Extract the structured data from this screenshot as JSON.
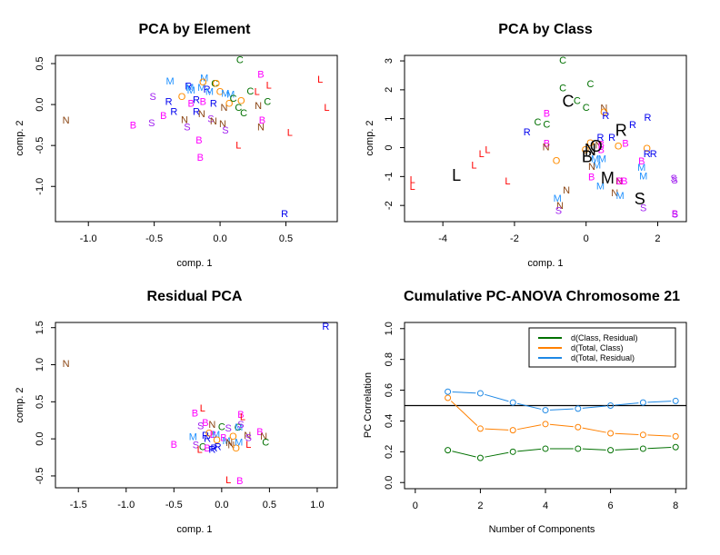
{
  "colors": {
    "B": "#FF00FF",
    "C": "#007000",
    "L": "#FF0000",
    "M": "#1E90FF",
    "N": "#8B4513",
    "O": "#FF8C00",
    "R": "#0000EE",
    "S": "#A020F0",
    "centroid": "#000000",
    "d_class_residual": "#007000",
    "d_total_class": "#FF8000",
    "d_total_residual": "#1E88E5",
    "reference_line": "#000000"
  },
  "chart_data": [
    {
      "id": "pca-by-element",
      "type": "scatter",
      "title": "PCA by Element",
      "xlabel": "comp. 1",
      "ylabel": "comp. 2",
      "xlim": [
        -1.25,
        0.89
      ],
      "ylim": [
        -1.43,
        0.6
      ],
      "xticks": [
        -1.0,
        -0.5,
        0.0,
        0.5
      ],
      "xtick_labels": [
        "-1.0",
        "-0.5",
        "0.0",
        "0.5"
      ],
      "yticks": [
        0.5,
        0.0,
        -0.5,
        -1.0
      ],
      "ytick_labels": [
        "0.5",
        "0.0",
        "-0.5",
        "-1.0"
      ],
      "points": [
        {
          "label": "N",
          "x": -1.17,
          "y": -0.19
        },
        {
          "label": "B",
          "x": -0.66,
          "y": -0.25
        },
        {
          "label": "S",
          "x": -0.52,
          "y": -0.22
        },
        {
          "label": "S",
          "x": -0.51,
          "y": 0.1
        },
        {
          "label": "B",
          "x": -0.43,
          "y": -0.13
        },
        {
          "label": "R",
          "x": -0.39,
          "y": 0.04
        },
        {
          "label": "M",
          "x": -0.38,
          "y": 0.29
        },
        {
          "label": "R",
          "x": -0.35,
          "y": -0.08
        },
        {
          "label": "O",
          "x": -0.29,
          "y": 0.1
        },
        {
          "label": "N",
          "x": -0.27,
          "y": -0.18
        },
        {
          "label": "S",
          "x": -0.25,
          "y": -0.27
        },
        {
          "label": "R",
          "x": -0.24,
          "y": 0.23
        },
        {
          "label": "M",
          "x": -0.23,
          "y": 0.21
        },
        {
          "label": "M",
          "x": -0.22,
          "y": 0.18
        },
        {
          "label": "B",
          "x": -0.22,
          "y": 0.02
        },
        {
          "label": "R",
          "x": -0.18,
          "y": 0.06
        },
        {
          "label": "R",
          "x": -0.18,
          "y": -0.08
        },
        {
          "label": "N",
          "x": -0.14,
          "y": -0.11
        },
        {
          "label": "B",
          "x": -0.16,
          "y": -0.43
        },
        {
          "label": "B",
          "x": -0.15,
          "y": -0.64
        },
        {
          "label": "M",
          "x": -0.14,
          "y": 0.21
        },
        {
          "label": "M",
          "x": -0.12,
          "y": 0.33
        },
        {
          "label": "O",
          "x": -0.13,
          "y": 0.28
        },
        {
          "label": "B",
          "x": -0.13,
          "y": 0.04
        },
        {
          "label": "R",
          "x": -0.1,
          "y": 0.19
        },
        {
          "label": "M",
          "x": -0.08,
          "y": 0.16
        },
        {
          "label": "S",
          "x": -0.07,
          "y": -0.17
        },
        {
          "label": "N",
          "x": -0.05,
          "y": -0.2
        },
        {
          "label": "R",
          "x": -0.05,
          "y": 0.02
        },
        {
          "label": "C",
          "x": -0.04,
          "y": 0.26
        },
        {
          "label": "O",
          "x": -0.03,
          "y": 0.26
        },
        {
          "label": "O",
          "x": 0.0,
          "y": 0.16
        },
        {
          "label": "N",
          "x": 0.02,
          "y": -0.23
        },
        {
          "label": "N",
          "x": 0.03,
          "y": -0.03
        },
        {
          "label": "M",
          "x": 0.04,
          "y": 0.14
        },
        {
          "label": "S",
          "x": 0.04,
          "y": -0.31
        },
        {
          "label": "O",
          "x": 0.07,
          "y": 0.02
        },
        {
          "label": "M",
          "x": 0.08,
          "y": 0.13
        },
        {
          "label": "C",
          "x": 0.1,
          "y": 0.08
        },
        {
          "label": "C",
          "x": 0.15,
          "y": 0.55
        },
        {
          "label": "C",
          "x": 0.14,
          "y": -0.03
        },
        {
          "label": "L",
          "x": 0.14,
          "y": -0.49
        },
        {
          "label": "O",
          "x": 0.16,
          "y": 0.05
        },
        {
          "label": "C",
          "x": 0.18,
          "y": -0.1
        },
        {
          "label": "C",
          "x": 0.23,
          "y": 0.17
        },
        {
          "label": "L",
          "x": 0.28,
          "y": 0.16
        },
        {
          "label": "N",
          "x": 0.29,
          "y": -0.01
        },
        {
          "label": "N",
          "x": 0.31,
          "y": -0.27
        },
        {
          "label": "B",
          "x": 0.31,
          "y": 0.37
        },
        {
          "label": "B",
          "x": 0.32,
          "y": -0.19
        },
        {
          "label": "L",
          "x": 0.37,
          "y": 0.24
        },
        {
          "label": "C",
          "x": 0.36,
          "y": 0.04
        },
        {
          "label": "L",
          "x": 0.53,
          "y": -0.34
        },
        {
          "label": "R",
          "x": 0.49,
          "y": -1.33
        },
        {
          "label": "L",
          "x": 0.76,
          "y": 0.31
        },
        {
          "label": "L",
          "x": 0.81,
          "y": -0.03
        }
      ]
    },
    {
      "id": "pca-by-class",
      "type": "scatter",
      "title": "PCA by Class",
      "xlabel": "comp. 1",
      "ylabel": "comp. 2",
      "xlim": [
        -5.07,
        2.8
      ],
      "ylim": [
        -2.56,
        3.19
      ],
      "xticks": [
        -4,
        -2,
        0,
        2
      ],
      "xtick_labels": [
        "-4",
        "-2",
        "0",
        "2"
      ],
      "yticks": [
        3,
        2,
        1,
        0,
        -1,
        -2
      ],
      "ytick_labels": [
        "3",
        "2",
        "1",
        "0",
        "-1",
        "-2"
      ],
      "points": [
        {
          "label": "L",
          "x": -4.85,
          "y": -1.1
        },
        {
          "label": "L",
          "x": -4.85,
          "y": -1.34
        },
        {
          "label": "L",
          "x": -3.13,
          "y": -0.6
        },
        {
          "label": "L",
          "x": -2.92,
          "y": -0.2
        },
        {
          "label": "L",
          "x": -2.75,
          "y": -0.06
        },
        {
          "label": "L",
          "x": -2.19,
          "y": -1.15
        },
        {
          "label": "R",
          "x": -1.65,
          "y": 0.55
        },
        {
          "label": "C",
          "x": -1.35,
          "y": 0.9
        },
        {
          "label": "C",
          "x": -1.1,
          "y": 0.82
        },
        {
          "label": "B",
          "x": -1.1,
          "y": 1.2
        },
        {
          "label": "B",
          "x": -1.1,
          "y": 0.16
        },
        {
          "label": "N",
          "x": -1.12,
          "y": 0.04
        },
        {
          "label": "O",
          "x": -0.83,
          "y": -0.44
        },
        {
          "label": "N",
          "x": -0.55,
          "y": -1.46
        },
        {
          "label": "M",
          "x": -0.8,
          "y": -1.75
        },
        {
          "label": "N",
          "x": -0.73,
          "y": -2.0
        },
        {
          "label": "S",
          "x": -0.77,
          "y": -2.16
        },
        {
          "label": "C",
          "x": -0.65,
          "y": 3.03
        },
        {
          "label": "C",
          "x": -0.65,
          "y": 2.07
        },
        {
          "label": "C",
          "x": -0.25,
          "y": 1.63
        },
        {
          "label": "C",
          "x": 0.0,
          "y": 1.4
        },
        {
          "label": "C",
          "x": 0.12,
          "y": 2.22
        },
        {
          "label": "N",
          "x": 0.5,
          "y": 1.38
        },
        {
          "label": "O",
          "x": 0.5,
          "y": 1.24
        },
        {
          "label": "R",
          "x": 0.55,
          "y": 1.12
        },
        {
          "label": "R",
          "x": 1.3,
          "y": 0.8
        },
        {
          "label": "R",
          "x": 1.72,
          "y": 1.06
        },
        {
          "label": "R",
          "x": 0.72,
          "y": 0.36
        },
        {
          "label": "R",
          "x": 0.4,
          "y": 0.36
        },
        {
          "label": "B",
          "x": 1.1,
          "y": 0.16
        },
        {
          "label": "O",
          "x": 0.9,
          "y": 0.06
        },
        {
          "label": "O",
          "x": 0.12,
          "y": 0.18
        },
        {
          "label": "O",
          "x": -0.02,
          "y": -0.06
        },
        {
          "label": "N",
          "x": 0.35,
          "y": 0.1
        },
        {
          "label": "B",
          "x": 0.42,
          "y": 0.12
        },
        {
          "label": "B",
          "x": 0.42,
          "y": -0.06
        },
        {
          "label": "M",
          "x": 0.25,
          "y": -0.38
        },
        {
          "label": "M",
          "x": 0.45,
          "y": -0.38
        },
        {
          "label": "M",
          "x": 0.3,
          "y": -0.6
        },
        {
          "label": "N",
          "x": 0.16,
          "y": -0.64
        },
        {
          "label": "B",
          "x": 0.15,
          "y": -1.0
        },
        {
          "label": "M",
          "x": 0.4,
          "y": -1.32
        },
        {
          "label": "N",
          "x": 0.8,
          "y": -1.55
        },
        {
          "label": "M",
          "x": 0.95,
          "y": -1.65
        },
        {
          "label": "N",
          "x": 0.92,
          "y": -1.15
        },
        {
          "label": "B",
          "x": 0.93,
          "y": -1.14
        },
        {
          "label": "B",
          "x": 1.07,
          "y": -1.14
        },
        {
          "label": "O",
          "x": 1.7,
          "y": -0.02
        },
        {
          "label": "R",
          "x": 1.7,
          "y": -0.2
        },
        {
          "label": "R",
          "x": 1.88,
          "y": -0.2
        },
        {
          "label": "B",
          "x": 1.55,
          "y": -0.45
        },
        {
          "label": "M",
          "x": 1.55,
          "y": -0.68
        },
        {
          "label": "M",
          "x": 1.6,
          "y": -0.98
        },
        {
          "label": "S",
          "x": 1.6,
          "y": -2.07
        },
        {
          "label": "S",
          "x": 2.45,
          "y": -1.05
        },
        {
          "label": "S",
          "x": 2.47,
          "y": -1.12
        },
        {
          "label": "B",
          "x": 2.48,
          "y": -2.27
        },
        {
          "label": "S",
          "x": 2.48,
          "y": -2.3
        }
      ],
      "centroids": [
        {
          "label": "C",
          "x": -0.5,
          "y": 1.6
        },
        {
          "label": "L",
          "x": -3.62,
          "y": -0.95
        },
        {
          "label": "R",
          "x": 0.98,
          "y": 0.6
        },
        {
          "label": "O",
          "x": 0.28,
          "y": 0.05
        },
        {
          "label": "N",
          "x": 0.12,
          "y": -0.07
        },
        {
          "label": "B",
          "x": 0.03,
          "y": -0.32
        },
        {
          "label": "M",
          "x": 0.6,
          "y": -1.05
        },
        {
          "label": "S",
          "x": 1.5,
          "y": -1.78
        }
      ]
    },
    {
      "id": "residual-pca",
      "type": "scatter",
      "title": "Residual PCA",
      "xlabel": "comp. 1",
      "ylabel": "comp. 2",
      "xlim": [
        -1.74,
        1.21
      ],
      "ylim": [
        -0.66,
        1.57
      ],
      "xticks": [
        -1.5,
        -1.0,
        -0.5,
        0.0,
        0.5,
        1.0
      ],
      "xtick_labels": [
        "-1.5",
        "-1.0",
        "-0.5",
        "0.0",
        "0.5",
        "1.0"
      ],
      "yticks": [
        1.5,
        1.0,
        0.5,
        0.0,
        -0.5
      ],
      "ytick_labels": [
        "1.5",
        "1.0",
        "0.5",
        "0.0",
        "-0.5"
      ],
      "points": [
        {
          "label": "N",
          "x": -1.63,
          "y": 1.02
        },
        {
          "label": "R",
          "x": 1.09,
          "y": 1.52
        },
        {
          "label": "B",
          "x": -0.5,
          "y": -0.07
        },
        {
          "label": "M",
          "x": -0.3,
          "y": 0.03
        },
        {
          "label": "B",
          "x": -0.28,
          "y": 0.35
        },
        {
          "label": "L",
          "x": -0.2,
          "y": 0.42
        },
        {
          "label": "S",
          "x": -0.22,
          "y": 0.18
        },
        {
          "label": "B",
          "x": -0.17,
          "y": 0.22
        },
        {
          "label": "N",
          "x": -0.1,
          "y": 0.2
        },
        {
          "label": "S",
          "x": -0.27,
          "y": -0.08
        },
        {
          "label": "L",
          "x": -0.23,
          "y": -0.14
        },
        {
          "label": "C",
          "x": -0.2,
          "y": -0.1
        },
        {
          "label": "B",
          "x": -0.15,
          "y": -0.12
        },
        {
          "label": "R",
          "x": -0.17,
          "y": 0.05
        },
        {
          "label": "R",
          "x": -0.15,
          "y": 0.01
        },
        {
          "label": "O",
          "x": -0.13,
          "y": 0.08
        },
        {
          "label": "R",
          "x": -0.1,
          "y": -0.14
        },
        {
          "label": "R",
          "x": -0.08,
          "y": -0.12
        },
        {
          "label": "B",
          "x": -0.09,
          "y": 0.06
        },
        {
          "label": "M",
          "x": -0.06,
          "y": 0.06
        },
        {
          "label": "R",
          "x": -0.04,
          "y": -0.1
        },
        {
          "label": "O",
          "x": -0.05,
          "y": -0.01
        },
        {
          "label": "C",
          "x": 0.0,
          "y": 0.17
        },
        {
          "label": "S",
          "x": 0.07,
          "y": 0.15
        },
        {
          "label": "B",
          "x": 0.02,
          "y": 0.02
        },
        {
          "label": "M",
          "x": 0.05,
          "y": -0.02
        },
        {
          "label": "N",
          "x": 0.08,
          "y": -0.05
        },
        {
          "label": "O",
          "x": 0.12,
          "y": 0.04
        },
        {
          "label": "N",
          "x": 0.1,
          "y": -0.08
        },
        {
          "label": "O",
          "x": 0.15,
          "y": -0.12
        },
        {
          "label": "M",
          "x": 0.18,
          "y": -0.04
        },
        {
          "label": "C",
          "x": 0.17,
          "y": 0.16
        },
        {
          "label": "M",
          "x": 0.18,
          "y": 0.16
        },
        {
          "label": "S",
          "x": 0.2,
          "y": 0.2
        },
        {
          "label": "B",
          "x": 0.2,
          "y": 0.33
        },
        {
          "label": "L",
          "x": 0.22,
          "y": 0.3
        },
        {
          "label": "N",
          "x": 0.27,
          "y": 0.05
        },
        {
          "label": "S",
          "x": 0.28,
          "y": 0.02
        },
        {
          "label": "L",
          "x": 0.28,
          "y": -0.07
        },
        {
          "label": "B",
          "x": 0.4,
          "y": 0.1
        },
        {
          "label": "N",
          "x": 0.44,
          "y": 0.04
        },
        {
          "label": "C",
          "x": 0.46,
          "y": -0.04
        },
        {
          "label": "L",
          "x": 0.07,
          "y": -0.55
        },
        {
          "label": "B",
          "x": 0.19,
          "y": -0.56
        }
      ]
    },
    {
      "id": "cumulative-pc-anova",
      "type": "line",
      "title": "Cumulative PC-ANOVA Chromosome 21",
      "xlabel": "Number of Components",
      "ylabel": "PC Correlation",
      "xlim": [
        -0.33,
        8.33
      ],
      "ylim": [
        -0.04,
        1.04
      ],
      "xticks": [
        0,
        2,
        4,
        6,
        8
      ],
      "xtick_labels": [
        "0",
        "2",
        "4",
        "6",
        "8"
      ],
      "yticks": [
        0.0,
        0.2,
        0.4,
        0.6,
        0.8,
        1.0
      ],
      "ytick_labels": [
        "0.0",
        "0.2",
        "0.4",
        "0.6",
        "0.8",
        "1.0"
      ],
      "reference_line": 0.5,
      "legend_position": "top-right",
      "x": [
        1,
        2,
        3,
        4,
        5,
        6,
        7,
        8
      ],
      "series": [
        {
          "name": "d(Class, Residual)",
          "color_key": "d_class_residual",
          "values": [
            0.21,
            0.16,
            0.2,
            0.22,
            0.22,
            0.21,
            0.22,
            0.23
          ]
        },
        {
          "name": "d(Total, Class)",
          "color_key": "d_total_class",
          "values": [
            0.55,
            0.35,
            0.34,
            0.38,
            0.36,
            0.32,
            0.31,
            0.3
          ]
        },
        {
          "name": "d(Total, Residual)",
          "color_key": "d_total_residual",
          "values": [
            0.59,
            0.58,
            0.52,
            0.47,
            0.48,
            0.5,
            0.52,
            0.53
          ]
        }
      ]
    }
  ]
}
